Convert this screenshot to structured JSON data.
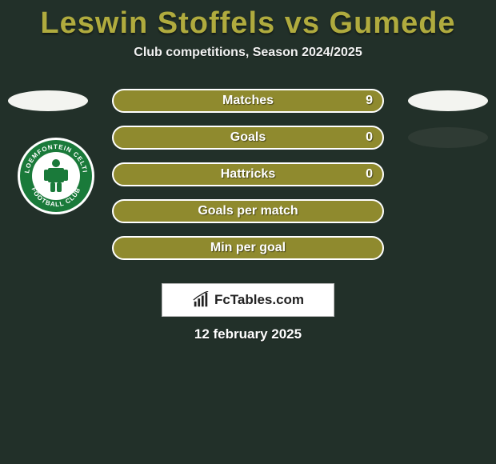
{
  "title_color": "#b0ab3e",
  "bar_fill": "#8f8a2e",
  "bar_border": "#ffffff",
  "background": "#223029",
  "title": "Leswin Stoffels vs Gumede",
  "subtitle": "Club competitions, Season 2024/2025",
  "date": "12 february 2025",
  "footer_brand": "FcTables.com",
  "left_oval_rows": [
    {
      "row": 0,
      "color": "#f3f4f0"
    }
  ],
  "right_oval_rows": [
    {
      "row": 0,
      "color": "#f3f4f0"
    },
    {
      "row": 1,
      "color": "#2f3b34"
    }
  ],
  "club_badge": {
    "outer_color": "#1a7a3a",
    "ring_color": "#ffffff",
    "inner_color": "#ffffff",
    "text_top": "BLOEMFONTEIN CELTIC",
    "text_bottom": "FOOTBALL CLUB"
  },
  "stats": [
    {
      "label": "Matches",
      "value": "9"
    },
    {
      "label": "Goals",
      "value": "0"
    },
    {
      "label": "Hattricks",
      "value": "0"
    },
    {
      "label": "Goals per match",
      "value": ""
    },
    {
      "label": "Min per goal",
      "value": ""
    }
  ]
}
